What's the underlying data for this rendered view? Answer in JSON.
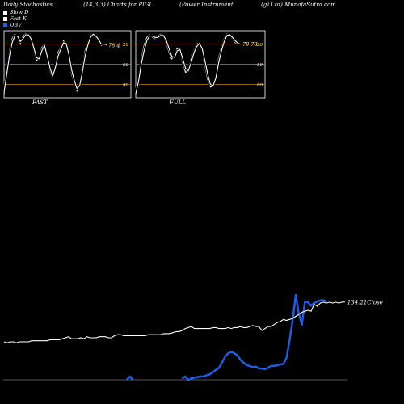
{
  "header": {
    "left": "Daily Stochastics",
    "params": "(14,3,3) Charts for PIGL",
    "company": "(Power Instrument",
    "site": "(g) Ltd) MunafaSutra.com"
  },
  "legend": [
    {
      "label": "Slow  D",
      "color": "#ffffff"
    },
    {
      "label": "Fast K",
      "color": "#ffffff"
    },
    {
      "label": "OBV",
      "color": "#1e5fe8"
    }
  ],
  "colors": {
    "background": "#000000",
    "grid": "#c8820a",
    "stoch": "#ffffff",
    "obv": "#1e5fe8",
    "close": "#ffffff"
  },
  "chart_data": [
    {
      "type": "line",
      "xlabel": "FAST",
      "ylim": [
        0,
        100
      ],
      "grid_levels": [
        20,
        50,
        80
      ],
      "y_ticks": [
        "80",
        "50",
        "20"
      ],
      "last_value_label": "78.4",
      "series": [
        {
          "values": [
            5,
            40,
            70,
            88,
            95,
            90,
            80,
            92,
            96,
            93,
            85,
            70,
            55,
            60,
            75,
            80,
            58,
            40,
            28,
            50,
            68,
            75,
            85,
            80,
            60,
            35,
            22,
            10,
            20,
            45,
            70,
            82,
            93,
            96,
            90,
            85,
            78,
            80,
            78
          ]
        },
        {
          "values": [
            8,
            35,
            62,
            82,
            92,
            92,
            84,
            88,
            94,
            94,
            88,
            75,
            60,
            58,
            70,
            78,
            62,
            45,
            32,
            45,
            62,
            72,
            82,
            81,
            65,
            42,
            26,
            14,
            18,
            38,
            62,
            78,
            90,
            95,
            92,
            87,
            80,
            80,
            79
          ]
        }
      ]
    },
    {
      "type": "line",
      "xlabel": "FULL",
      "ylim": [
        0,
        100
      ],
      "grid_levels": [
        20,
        50,
        80
      ],
      "y_ticks": [
        "80",
        "50",
        "20"
      ],
      "last_value_label": "79.78",
      "series": [
        {
          "values": [
            5,
            30,
            58,
            78,
            90,
            94,
            90,
            88,
            92,
            95,
            92,
            82,
            68,
            58,
            62,
            74,
            70,
            52,
            38,
            40,
            58,
            70,
            80,
            82,
            70,
            48,
            28,
            16,
            18,
            35,
            60,
            76,
            88,
            95,
            93,
            88,
            82,
            80,
            79.78
          ]
        },
        {
          "values": [
            6,
            24,
            50,
            70,
            85,
            92,
            92,
            90,
            90,
            93,
            93,
            86,
            74,
            62,
            60,
            70,
            72,
            58,
            44,
            40,
            52,
            66,
            76,
            81,
            74,
            56,
            36,
            20,
            18,
            30,
            52,
            70,
            84,
            93,
            94,
            90,
            85,
            81,
            80
          ]
        }
      ]
    },
    {
      "type": "line",
      "last_value_label": "134.21Close",
      "series": [
        {
          "name": "OBV",
          "values": [
            null,
            null,
            null,
            null,
            null,
            null,
            null,
            null,
            null,
            null,
            null,
            null,
            null,
            null,
            null,
            null,
            null,
            null,
            null,
            null,
            null,
            null,
            null,
            null,
            null,
            null,
            null,
            null,
            null,
            null,
            null,
            null,
            null,
            null,
            null,
            null,
            null,
            null,
            null,
            null,
            0,
            5,
            0,
            null,
            null,
            null,
            null,
            null,
            null,
            null,
            null,
            null,
            null,
            null,
            null,
            null,
            null,
            null,
            2,
            5,
            0,
            2,
            3,
            4,
            5,
            5,
            7,
            8,
            12,
            15,
            18,
            26,
            35,
            40,
            42,
            40,
            37,
            30,
            26,
            22,
            21,
            19,
            20,
            17,
            17,
            16,
            18,
            21,
            21,
            22,
            23,
            24,
            33,
            60,
            90,
            128,
            100,
            83,
            118,
            117,
            112,
            116,
            118,
            120,
            120,
            118
          ]
        },
        {
          "name": "Close",
          "values": [
            95,
            94,
            95,
            95,
            94,
            95,
            95,
            95,
            95,
            96,
            96,
            96,
            96,
            96,
            96,
            97,
            97,
            97,
            97,
            98,
            99,
            100,
            98,
            98,
            98,
            99,
            98,
            100,
            99,
            99,
            99,
            100,
            100,
            100,
            99,
            99,
            101,
            102,
            102,
            101,
            101,
            101,
            101,
            101,
            101,
            101,
            101,
            102,
            102,
            102,
            102,
            102,
            103,
            103,
            103,
            104,
            105,
            105,
            106,
            108,
            109,
            110,
            108,
            108,
            108,
            108,
            108,
            108,
            109,
            109,
            108,
            108,
            108,
            109,
            108,
            109,
            109,
            110,
            109,
            109,
            110,
            111,
            110,
            110,
            106,
            108,
            110,
            110,
            112,
            114,
            115,
            117,
            116,
            117,
            118,
            120,
            122,
            124,
            125,
            126,
            125,
            132,
            130,
            133,
            134,
            133,
            134,
            133,
            134,
            133,
            134,
            134.21
          ]
        }
      ]
    }
  ]
}
